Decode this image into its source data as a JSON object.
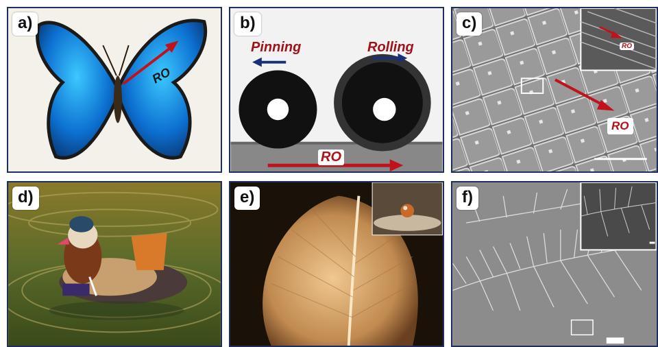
{
  "panels": {
    "a": {
      "letter": "a)",
      "ro": "RO"
    },
    "b": {
      "letter": "b)",
      "pinning": "Pinning",
      "rolling": "Rolling",
      "ro": "RO"
    },
    "c": {
      "letter": "c)",
      "ro": "RO",
      "inset_ro": "RO"
    },
    "d": {
      "letter": "d)"
    },
    "e": {
      "letter": "e)"
    },
    "f": {
      "letter": "f)"
    }
  },
  "colors": {
    "border": "#1d2f5a",
    "arrow_red": "#b01218",
    "arrow_blue": "#1a2f7a"
  }
}
